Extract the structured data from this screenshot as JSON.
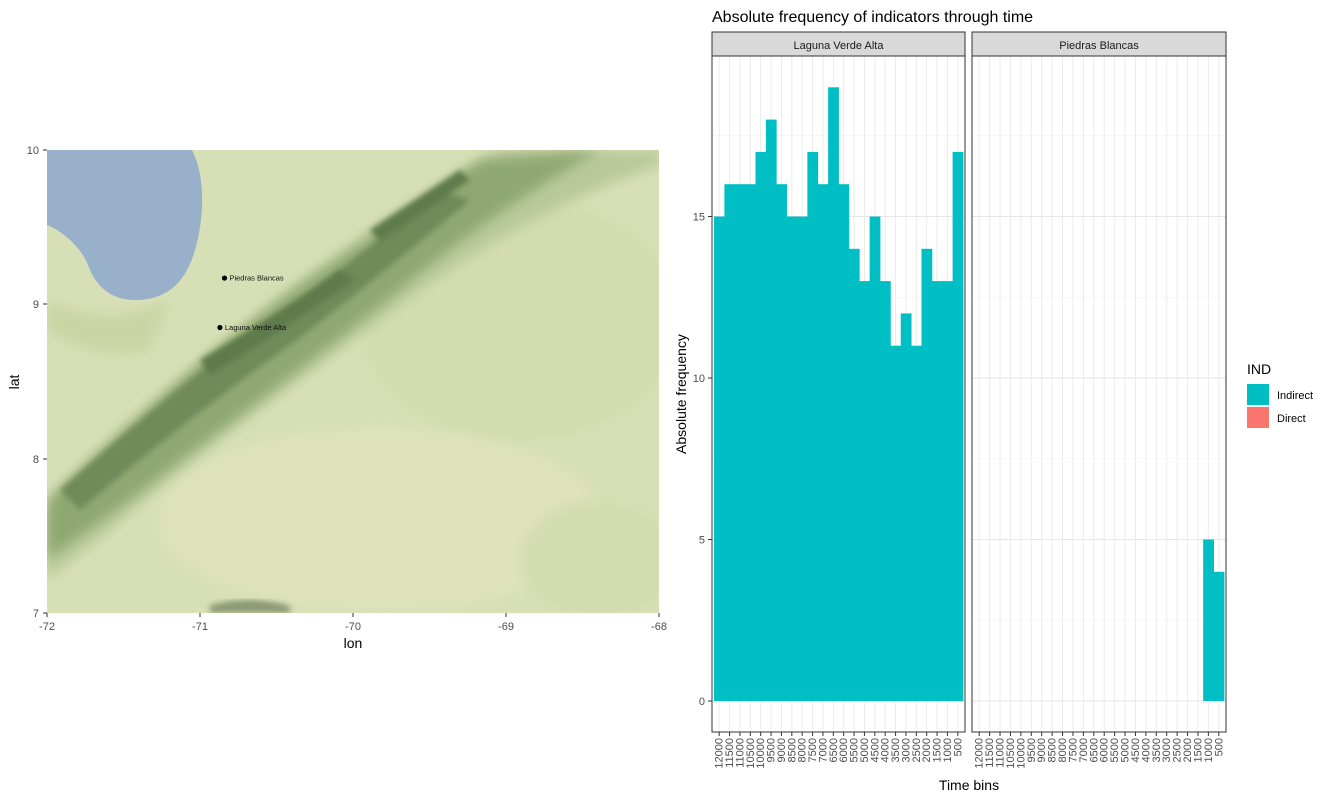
{
  "chart_data": [
    {
      "type": "scatter",
      "xlabel": "lon",
      "ylabel": "lat",
      "xlim": [
        -72,
        -68
      ],
      "ylim": [
        7,
        10
      ],
      "xticks": [
        -72,
        -71,
        -70,
        -69,
        -68
      ],
      "yticks": [
        7,
        8,
        9,
        10
      ],
      "xtick_labels": [
        "-72",
        "-71",
        "-70",
        "-69",
        "-68"
      ],
      "ytick_labels": [
        "7",
        "8",
        "9",
        "10"
      ],
      "background": "terrain-basemap",
      "points": [
        {
          "label": "Piedras Blancas",
          "lon": -70.84,
          "lat": 9.17
        },
        {
          "label": "Laguna Verde Alta",
          "lon": -70.87,
          "lat": 8.85
        }
      ]
    },
    {
      "type": "bar",
      "title": "Absolute frequency of indicators through time",
      "xlabel": "Time bins",
      "ylabel": "Absolute frequency",
      "ylim": [
        0,
        20
      ],
      "yticks": [
        0,
        5,
        10,
        15
      ],
      "ytick_labels": [
        "0",
        "5",
        "10",
        "15"
      ],
      "grid": true,
      "legend_title": "IND",
      "legend_position": "right",
      "categories": [
        "12000",
        "11500",
        "11000",
        "10500",
        "10000",
        "9500",
        "9000",
        "8500",
        "8000",
        "7500",
        "7000",
        "6500",
        "6000",
        "5500",
        "5000",
        "4500",
        "4000",
        "3500",
        "3000",
        "2500",
        "2000",
        "1500",
        "1000",
        "500"
      ],
      "panels": [
        {
          "name": "Laguna Verde Alta",
          "series": [
            {
              "name": "Indirect",
              "color": "#00BFC4",
              "values": [
                15,
                16,
                16,
                16,
                17,
                18,
                16,
                15,
                15,
                17,
                16,
                19,
                16,
                14,
                13,
                15,
                13,
                11,
                12,
                11,
                14,
                13,
                13,
                17
              ]
            },
            {
              "name": "Direct",
              "color": "#F8766D",
              "values": [
                0,
                0,
                0,
                0,
                0,
                0,
                0,
                0,
                0,
                0,
                0,
                0,
                0,
                0,
                0,
                0,
                0,
                0,
                0,
                0,
                0,
                0,
                0,
                0
              ]
            }
          ]
        },
        {
          "name": "Piedras Blancas",
          "series": [
            {
              "name": "Indirect",
              "color": "#00BFC4",
              "values": [
                0,
                0,
                0,
                0,
                0,
                0,
                0,
                0,
                0,
                0,
                0,
                0,
                0,
                0,
                0,
                0,
                0,
                0,
                0,
                0,
                0,
                0,
                5,
                4
              ]
            },
            {
              "name": "Direct",
              "color": "#F8766D",
              "values": [
                0,
                0,
                0,
                0,
                0,
                0,
                0,
                0,
                0,
                0,
                0,
                0,
                0,
                0,
                0,
                0,
                0,
                0,
                0,
                0,
                0,
                0,
                0,
                0
              ]
            }
          ]
        }
      ],
      "legend": [
        {
          "label": "Indirect",
          "color": "#00BFC4"
        },
        {
          "label": "Direct",
          "color": "#F8766D"
        }
      ]
    }
  ]
}
